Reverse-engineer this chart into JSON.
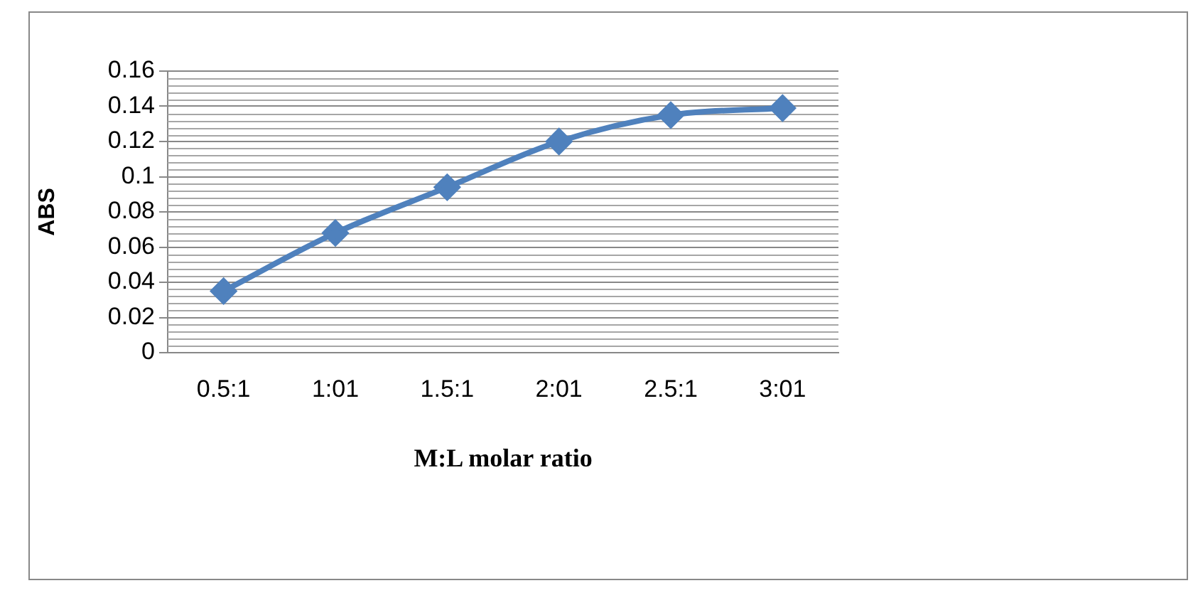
{
  "chart_data": {
    "type": "line",
    "xlabel": "M:L molar ratio",
    "ylabel": "ABS",
    "categories": [
      "0.5:1",
      "1:01",
      "1.5:1",
      "2:01",
      "2.5:1",
      "3:01"
    ],
    "series": [
      {
        "color": "#4f81bd",
        "values": [
          0.035,
          0.068,
          0.094,
          0.12,
          0.135,
          0.139
        ]
      }
    ],
    "ylim": [
      0,
      0.16
    ],
    "yticks": [
      0,
      0.02,
      0.04,
      0.06,
      0.08,
      0.1,
      0.12,
      0.14,
      0.16
    ],
    "grid": "y",
    "legend": false,
    "marker": "diamond",
    "line_style": "solid"
  }
}
